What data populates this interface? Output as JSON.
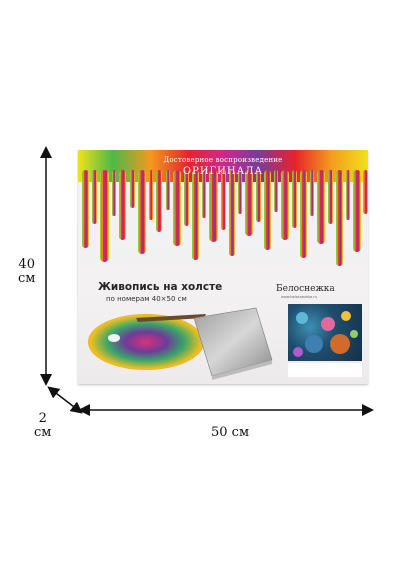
{
  "box": {
    "banner_line1": "Достоверное воспроизведение",
    "banner_line2": "ОРИГИНАЛА",
    "title": "Живопись на холсте",
    "subtitle": "по номерам 40×50 см",
    "brand": "Белоснежка",
    "brand_url": "www.belosnezhka.ru",
    "colors": {
      "drip_red": "#e8232b",
      "drip_orange": "#f39a1e",
      "drip_yellow": "#f2e11c",
      "drip_green": "#4db848",
      "drip_magenta": "#cc2a8a",
      "drip_purple": "#7b3b99"
    }
  },
  "dimensions": {
    "height_value": "40",
    "height_unit": "см",
    "depth_value": "2",
    "depth_unit": "см",
    "width_label": "50 см"
  }
}
